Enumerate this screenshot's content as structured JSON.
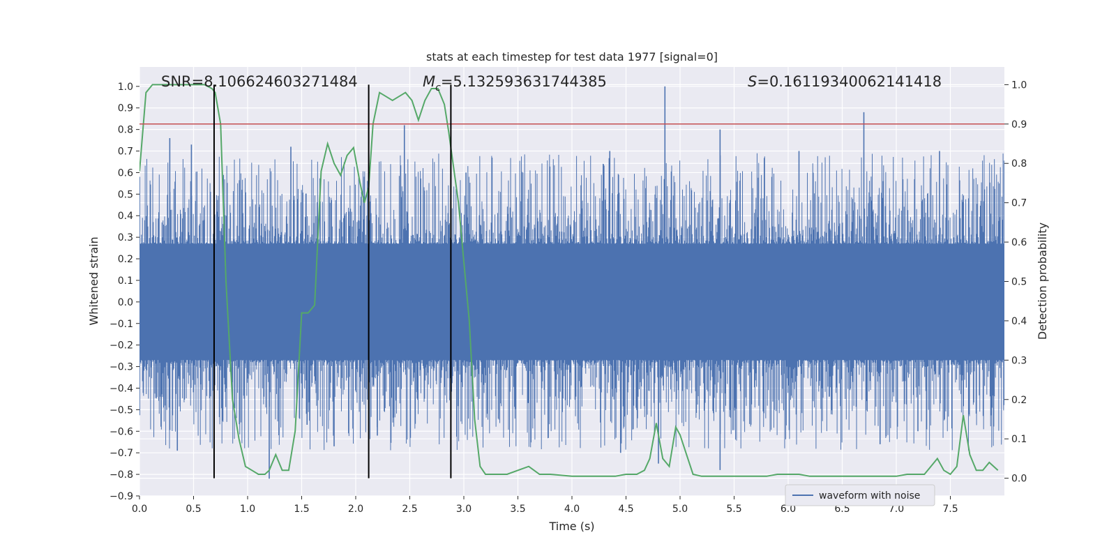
{
  "chart_data": {
    "type": "line",
    "title": "stats at each timestep for test data 1977 [signal=0]",
    "xlabel": "Time (s)",
    "ylabel_left": "Whitened strain",
    "ylabel_right": "Detection probability",
    "xlim": [
      0.0,
      8.0
    ],
    "ylim_left": [
      -0.9,
      1.09
    ],
    "ylim_right": [
      -0.045,
      1.045
    ],
    "xticks": [
      "0.0",
      "0.5",
      "1.0",
      "1.5",
      "2.0",
      "2.5",
      "3.0",
      "3.5",
      "4.0",
      "4.5",
      "5.0",
      "5.5",
      "6.0",
      "6.5",
      "7.0",
      "7.5"
    ],
    "yticks_left": [
      "1.0",
      "0.9",
      "0.8",
      "0.7",
      "0.6",
      "0.5",
      "0.4",
      "0.3",
      "0.2",
      "0.1",
      "0.0",
      "−0.1",
      "−0.2",
      "−0.3",
      "−0.4",
      "−0.5",
      "−0.6",
      "−0.7",
      "−0.8",
      "−0.9"
    ],
    "yticks_right": [
      "1.0",
      "0.9",
      "0.8",
      "0.7",
      "0.6",
      "0.5",
      "0.4",
      "0.3",
      "0.2",
      "0.1",
      "0.0"
    ],
    "annotations": {
      "snr": "SNR=8.106624603271484",
      "mc_symbol": "M",
      "mc_sub": "c",
      "mc_value": "=5.132593631744385",
      "s_symbol": "S",
      "s_value": "=0.16119340062141418"
    },
    "threshold_right": 0.9,
    "markers_x": [
      0.69,
      2.12,
      2.88
    ],
    "waveform": {
      "name": "waveform with noise",
      "color": "#4c72b0",
      "core_amplitude": 0.27,
      "peaks_pos": [
        [
          4.86,
          1.0
        ],
        [
          6.7,
          0.88
        ],
        [
          2.45,
          0.82
        ],
        [
          5.37,
          0.8
        ],
        [
          2.12,
          0.6
        ],
        [
          3.02,
          0.6
        ],
        [
          1.4,
          0.72
        ],
        [
          0.28,
          0.76
        ],
        [
          0.48,
          0.73
        ],
        [
          4.35,
          0.7
        ],
        [
          6.1,
          0.7
        ],
        [
          7.4,
          0.7
        ]
      ],
      "peaks_neg": [
        [
          1.2,
          -0.82
        ],
        [
          5.37,
          -0.78
        ],
        [
          4.8,
          -0.75
        ],
        [
          1.8,
          -0.67
        ],
        [
          0.35,
          -0.69
        ],
        [
          6.85,
          -0.66
        ],
        [
          1.55,
          -0.57
        ],
        [
          4.45,
          -0.7
        ],
        [
          2.2,
          -0.62
        ],
        [
          7.2,
          -0.6
        ]
      ]
    },
    "detection": {
      "name": "detection probability",
      "color": "#55a868",
      "x": [
        0.0,
        0.06,
        0.12,
        0.2,
        0.3,
        0.4,
        0.5,
        0.6,
        0.67,
        0.7,
        0.75,
        0.8,
        0.86,
        0.92,
        0.98,
        1.04,
        1.1,
        1.16,
        1.2,
        1.26,
        1.32,
        1.38,
        1.44,
        1.5,
        1.56,
        1.62,
        1.68,
        1.74,
        1.8,
        1.86,
        1.92,
        1.98,
        2.04,
        2.08,
        2.12,
        2.16,
        2.22,
        2.28,
        2.34,
        2.4,
        2.46,
        2.52,
        2.58,
        2.64,
        2.7,
        2.76,
        2.82,
        2.86,
        2.9,
        2.95,
        3.0,
        3.05,
        3.1,
        3.15,
        3.2,
        3.3,
        3.4,
        3.5,
        3.6,
        3.7,
        3.8,
        4.0,
        4.2,
        4.4,
        4.5,
        4.6,
        4.67,
        4.72,
        4.78,
        4.84,
        4.9,
        4.96,
        5.0,
        5.06,
        5.12,
        5.2,
        5.4,
        5.6,
        5.8,
        5.9,
        6.0,
        6.1,
        6.2,
        6.4,
        6.6,
        6.8,
        7.0,
        7.1,
        7.2,
        7.26,
        7.32,
        7.38,
        7.44,
        7.5,
        7.56,
        7.62,
        7.68,
        7.74,
        7.8,
        7.86,
        7.94
      ],
      "y": [
        0.78,
        0.98,
        1.0,
        1.0,
        1.0,
        1.0,
        1.0,
        1.0,
        0.99,
        0.98,
        0.9,
        0.5,
        0.2,
        0.1,
        0.03,
        0.02,
        0.01,
        0.01,
        0.02,
        0.06,
        0.02,
        0.02,
        0.12,
        0.42,
        0.42,
        0.44,
        0.78,
        0.85,
        0.8,
        0.77,
        0.82,
        0.84,
        0.75,
        0.7,
        0.74,
        0.9,
        0.98,
        0.97,
        0.96,
        0.97,
        0.98,
        0.96,
        0.91,
        0.96,
        0.99,
        0.99,
        0.95,
        0.88,
        0.8,
        0.7,
        0.55,
        0.4,
        0.15,
        0.03,
        0.01,
        0.01,
        0.01,
        0.02,
        0.03,
        0.01,
        0.01,
        0.005,
        0.005,
        0.005,
        0.01,
        0.01,
        0.02,
        0.05,
        0.14,
        0.05,
        0.03,
        0.13,
        0.11,
        0.06,
        0.01,
        0.005,
        0.005,
        0.005,
        0.005,
        0.01,
        0.01,
        0.01,
        0.005,
        0.005,
        0.005,
        0.005,
        0.005,
        0.01,
        0.01,
        0.01,
        0.03,
        0.05,
        0.02,
        0.01,
        0.03,
        0.16,
        0.06,
        0.02,
        0.02,
        0.04,
        0.02
      ]
    },
    "legend_position": "lower-right"
  }
}
